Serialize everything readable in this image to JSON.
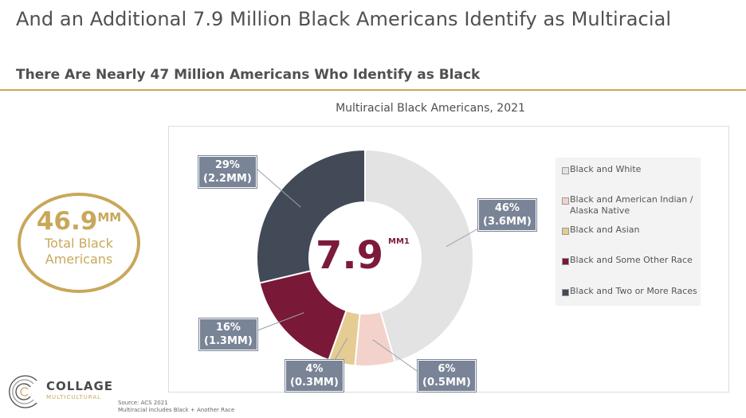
{
  "header": {
    "title": "And an Additional 7.9 Million Black Americans Identify as Multiracial",
    "subtitle": "There Are Nearly 47 Million Americans Who Identify as Black"
  },
  "stat": {
    "value": "46.9",
    "unit": "MM",
    "label_line1": "Total Black",
    "label_line2": "Americans",
    "color": "#c9a75a"
  },
  "chart_data": {
    "type": "pie",
    "title": "Multiracial Black Americans, 2021",
    "center_value": "7.9",
    "center_unit": "MM",
    "center_footnote": "1",
    "categories": [
      "Black and White",
      "Black and American Indian / Alaska Native",
      "Black and Asian",
      "Black and Some Other Race",
      "Black and Two or More Races"
    ],
    "values": [
      46,
      6,
      4,
      16,
      29
    ],
    "amounts_mm": [
      3.6,
      0.5,
      0.3,
      1.3,
      2.2
    ],
    "colors": [
      "#e3e3e3",
      "#f3d2cb",
      "#e4cc93",
      "#7a1837",
      "#424a58"
    ],
    "callouts": [
      {
        "pct": "46%",
        "amt": "(3.6MM)"
      },
      {
        "pct": "6%",
        "amt": "(0.5MM)"
      },
      {
        "pct": "4%",
        "amt": "(0.3MM)"
      },
      {
        "pct": "16%",
        "amt": "(1.3MM)"
      },
      {
        "pct": "29%",
        "amt": "(2.2MM)"
      }
    ],
    "legend": [
      "Black and White",
      "Black and American Indian / Alaska Native",
      "Black and Asian",
      "Black and Some Other Race",
      "Black and Two or More Races"
    ],
    "legend_placement": "right"
  },
  "logo": {
    "name": "COLLAGE",
    "tagline": "MULTICULTURAL"
  },
  "source": {
    "line1": "Source: ACS 2021",
    "line2": "Multiracial includes Black + Another Race"
  }
}
